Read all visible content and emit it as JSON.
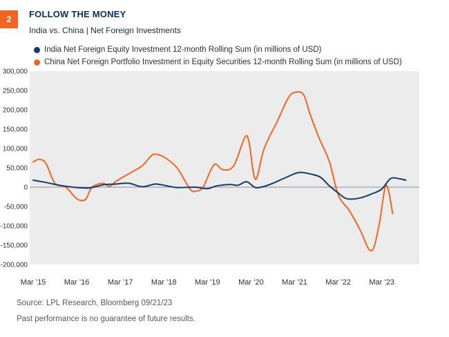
{
  "header": {
    "badge": "2",
    "title": "FOLLOW THE MONEY",
    "subtitle": "India vs. China | Net Foreign Investments"
  },
  "footer": {
    "source": "Source: LPL Research, Bloomberg 09/21/23",
    "disclaimer": "Past performance is no guarantee of future results."
  },
  "chart_data": {
    "type": "line",
    "title": "FOLLOW THE MONEY",
    "subtitle": "India vs. China | Net Foreign Investments",
    "xlabel": "",
    "ylabel": "",
    "ylim": [
      -200000,
      300000
    ],
    "yticks": [
      300000,
      250000,
      200000,
      150000,
      100000,
      50000,
      0,
      -50000,
      -100000,
      -150000,
      -200000
    ],
    "ytick_labels": [
      "300,000",
      "250,000",
      "200,000",
      "150,000",
      "100,000",
      "50,000",
      "0",
      "-50,000",
      "-100,000",
      "-150,000",
      "-200,000"
    ],
    "xlim": [
      2015.0,
      2023.75
    ],
    "xticks": [
      2015,
      2016,
      2017,
      2018,
      2019,
      2020,
      2021,
      2022,
      2023
    ],
    "xtick_labels": [
      "Mar ’15",
      "Mar ’16",
      "Mar ’17",
      "Mar ’18",
      "Mar ’19",
      "Mar ’20",
      "Mar ’21",
      "Mar ’22",
      "Mar ’23"
    ],
    "legend_position": "top",
    "background": "#ececec",
    "series": [
      {
        "name": "India Net Foreign Equity Investment 12-month Rolling Sum (in millions of USD)",
        "color": "#123c64",
        "x": [
          2015.0,
          2015.3,
          2015.6,
          2016.0,
          2016.3,
          2016.6,
          2016.9,
          2017.2,
          2017.5,
          2017.8,
          2018.0,
          2018.3,
          2018.7,
          2019.0,
          2019.2,
          2019.5,
          2019.7,
          2019.9,
          2020.1,
          2020.3,
          2020.5,
          2020.8,
          2021.1,
          2021.4,
          2021.6,
          2021.8,
          2022.0,
          2022.2,
          2022.5,
          2022.8,
          2023.0,
          2023.2,
          2023.4,
          2023.55
        ],
        "values": [
          18000,
          12000,
          5000,
          -1000,
          -2000,
          6000,
          8000,
          10000,
          1000,
          8000,
          5000,
          -1000,
          0,
          -4000,
          3000,
          7000,
          5000,
          14000,
          -1000,
          2000,
          10000,
          25000,
          38000,
          33000,
          25000,
          3000,
          -15000,
          -30000,
          -28000,
          -16000,
          -5000,
          22000,
          22000,
          18000
        ]
      },
      {
        "name": "China Net Foreign Portfolio Investment in Equity Securities 12-month Rolling Sum (in millions of USD)",
        "color": "#f26522",
        "x": [
          2015.0,
          2015.15,
          2015.3,
          2015.5,
          2015.75,
          2016.0,
          2016.2,
          2016.35,
          2016.6,
          2016.75,
          2016.9,
          2017.2,
          2017.5,
          2017.7,
          2017.8,
          2018.0,
          2018.3,
          2018.6,
          2018.75,
          2018.9,
          2019.15,
          2019.35,
          2019.6,
          2019.85,
          2019.95,
          2020.1,
          2020.3,
          2020.6,
          2020.85,
          2021.0,
          2021.2,
          2021.35,
          2021.55,
          2021.8,
          2022.0,
          2022.25,
          2022.5,
          2022.7,
          2022.82,
          2022.95,
          2023.1,
          2023.25
        ],
        "values": [
          65000,
          72000,
          60000,
          10000,
          0,
          -30000,
          -32000,
          0,
          10000,
          2000,
          15000,
          35000,
          55000,
          80000,
          85000,
          78000,
          50000,
          -5000,
          -10000,
          0,
          58000,
          45000,
          55000,
          127000,
          118000,
          20000,
          100000,
          170000,
          230000,
          245000,
          240000,
          190000,
          130000,
          65000,
          -20000,
          -60000,
          -110000,
          -160000,
          -155000,
          -90000,
          5000,
          -68000
        ]
      }
    ]
  }
}
